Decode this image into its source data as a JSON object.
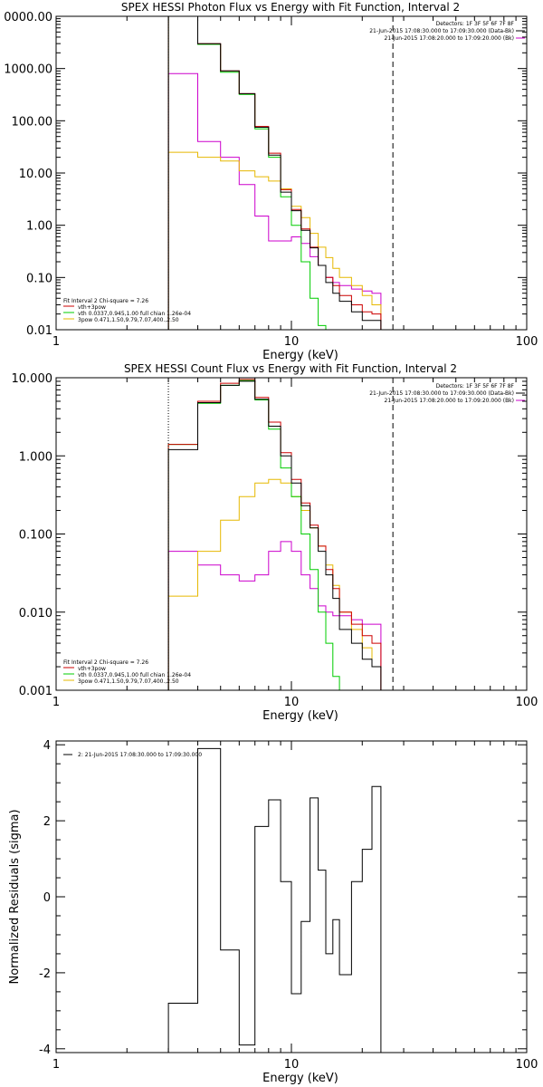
{
  "chart_data": [
    {
      "type": "line",
      "title": "SPEX HESSI Photon Flux vs Energy with Fit Function, Interval 2",
      "xlabel": "Energy (keV)",
      "ylabel": "",
      "xscale": "log",
      "yscale": "log",
      "xlim": [
        1,
        100
      ],
      "ylim": [
        0.01,
        10000
      ],
      "xtick_labels": [
        "1",
        "10",
        "100"
      ],
      "ytick_labels": [
        "0.01",
        "0.10",
        "1.00",
        "10.00",
        "100.00",
        "1000.00",
        "0000.00"
      ],
      "fit_range": [
        3,
        27
      ],
      "legend_placement": "bottom-left",
      "info_placement": "top-right",
      "info_lines": [
        "Detectors: 1F 3F 5F 6F 7F 8F",
        "21-Jun-2015 17:08:30.000 to 17:09:30.000 (Data-Bk)",
        "21-Jun-2015 17:08:20.000 to 17:09:20.000 (Bk)"
      ],
      "legend_lines": [
        "Fit Interval 2   Chi-square = 7.26",
        "vth+3pow",
        "vth 0.0337,0.945,1.00  full chian 1.26e-04",
        "3pow 0.471,1.50,9.79,7.07,400.,2.50"
      ],
      "bin_edges": [
        3,
        4,
        5,
        6,
        7,
        8,
        9,
        10,
        11,
        12,
        13,
        14,
        15,
        16,
        18,
        20,
        22,
        24,
        27
      ],
      "series": [
        {
          "name": "Data-Bk",
          "color": "#000000",
          "values": [
            10000,
            3000,
            900,
            330,
            75,
            22,
            4.3,
            1.9,
            0.8,
            0.37,
            0.17,
            0.08,
            0.05,
            0.035,
            0.022,
            0.015,
            0.015,
            null
          ]
        },
        {
          "name": "vth+3pow",
          "color": "#cc0000",
          "values": [
            10000,
            3000,
            900,
            330,
            78,
            24,
            4.8,
            2.0,
            0.85,
            0.38,
            0.17,
            0.1,
            0.07,
            0.045,
            0.03,
            0.022,
            0.02,
            null
          ]
        },
        {
          "name": "vth",
          "color": "#00cc00",
          "values": [
            10000,
            2900,
            850,
            320,
            70,
            20,
            3.5,
            1.0,
            0.2,
            0.04,
            0.012,
            null,
            null,
            null,
            null,
            null,
            null,
            null
          ]
        },
        {
          "name": "3pow",
          "color": "#e6b800",
          "values": [
            25,
            20,
            17,
            11,
            8.5,
            7,
            5,
            2.3,
            1.4,
            0.7,
            0.38,
            0.24,
            0.15,
            0.1,
            0.07,
            0.045,
            0.03,
            null
          ]
        },
        {
          "name": "Bk",
          "color": "#cc00cc",
          "values": [
            800,
            40,
            20,
            6,
            1.5,
            0.5,
            0.5,
            0.6,
            0.45,
            0.25,
            0.17,
            0.1,
            0.08,
            0.07,
            0.06,
            0.055,
            0.05,
            null
          ]
        }
      ]
    },
    {
      "type": "line",
      "title": "SPEX HESSI Count Flux vs Energy with Fit Function, Interval 2",
      "xlabel": "Energy (keV)",
      "ylabel": "",
      "xscale": "log",
      "yscale": "log",
      "xlim": [
        1,
        100
      ],
      "ylim": [
        0.001,
        10
      ],
      "xtick_labels": [
        "1",
        "10",
        "100"
      ],
      "ytick_labels": [
        "0.001",
        "0.010",
        "0.100",
        "1.000",
        "10.000"
      ],
      "fit_range": [
        3,
        27
      ],
      "legend_placement": "bottom-left",
      "info_placement": "top-right",
      "info_lines": [
        "Detectors: 1F 3F 5F 6F 7F 8F",
        "21-Jun-2015 17:08:30.000 to 17:09:30.000 (Data-Bk)",
        "21-Jun-2015 17:08:20.000 to 17:09:20.000 (Bk)"
      ],
      "legend_lines": [
        "Fit Interval 2   Chi-square = 7.26",
        "vth+3pow",
        "vth 0.0337,0.945,1.00  full chian 1.26e-04",
        "3pow 0.471,1.50,9.79,7.07,400.,2.50"
      ],
      "bin_edges": [
        3,
        4,
        5,
        6,
        7,
        8,
        9,
        10,
        11,
        12,
        13,
        14,
        15,
        16,
        18,
        20,
        22,
        24,
        27
      ],
      "series": [
        {
          "name": "Data-Bk",
          "color": "#000000",
          "values": [
            1.2,
            4.8,
            8.0,
            9.0,
            5.3,
            2.4,
            1.0,
            0.45,
            0.23,
            0.12,
            0.06,
            0.03,
            0.015,
            0.006,
            0.004,
            0.0025,
            0.002,
            null
          ]
        },
        {
          "name": "vth+3pow",
          "color": "#cc0000",
          "values": [
            1.4,
            5.0,
            8.5,
            9.5,
            5.6,
            2.7,
            1.1,
            0.5,
            0.25,
            0.13,
            0.07,
            0.035,
            0.02,
            0.01,
            0.007,
            0.005,
            0.004,
            null
          ]
        },
        {
          "name": "vth",
          "color": "#00cc00",
          "values": [
            1.4,
            4.7,
            8.0,
            9.2,
            5.2,
            2.2,
            0.7,
            0.3,
            0.1,
            0.035,
            0.01,
            0.004,
            0.0015,
            null,
            null,
            null,
            null,
            null
          ]
        },
        {
          "name": "3pow",
          "color": "#e6b800",
          "values": [
            0.016,
            0.06,
            0.15,
            0.3,
            0.45,
            0.5,
            0.45,
            0.3,
            0.2,
            0.12,
            0.07,
            0.04,
            0.022,
            0.01,
            0.006,
            0.0035,
            0.002,
            null
          ]
        },
        {
          "name": "Bk",
          "color": "#cc00cc",
          "values": [
            0.06,
            0.04,
            0.03,
            0.025,
            0.03,
            0.06,
            0.08,
            0.06,
            0.03,
            0.02,
            0.012,
            0.01,
            0.009,
            0.009,
            0.008,
            0.007,
            0.007,
            null
          ]
        }
      ]
    },
    {
      "type": "line",
      "title": "",
      "xlabel": "Energy (keV)",
      "ylabel": "Normalized Residuals (sigma)",
      "xscale": "log",
      "yscale": "linear",
      "xlim": [
        1,
        100
      ],
      "ylim": [
        -4.1,
        4.1
      ],
      "xtick_labels": [
        "1",
        "10",
        "100"
      ],
      "ytick_labels": [
        "-4",
        "-2",
        "0",
        "2",
        "4"
      ],
      "legend_placement": "top-left",
      "legend_lines": [
        "2: 21-Jun-2015 17:08:30.000 to 17:09:30.000"
      ],
      "bin_edges": [
        3,
        4,
        5,
        6,
        7,
        8,
        9,
        10,
        11,
        12,
        13,
        14,
        15,
        16,
        18,
        20,
        22,
        24,
        27
      ],
      "series": [
        {
          "name": "2: 21-Jun-2015 17:08:30.000 to 17:09:30.000",
          "color": "#000000",
          "values": [
            -2.8,
            3.9,
            -1.4,
            -3.9,
            1.85,
            2.55,
            0.4,
            -2.55,
            -0.65,
            2.6,
            0.7,
            -1.5,
            -0.6,
            -2.05,
            0.4,
            1.25,
            2.9,
            null
          ]
        }
      ]
    }
  ]
}
